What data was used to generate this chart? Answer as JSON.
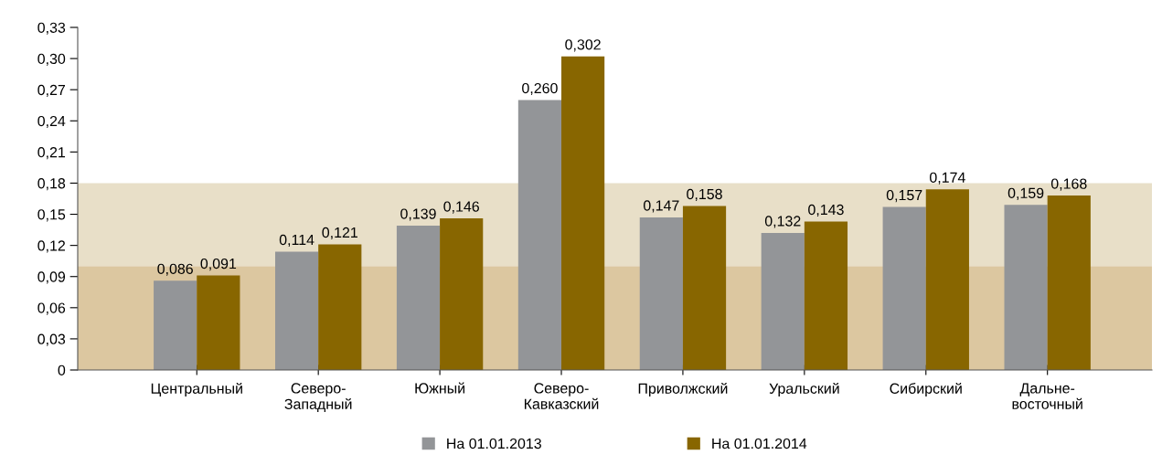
{
  "chart_data": {
    "type": "bar",
    "categories": [
      "Центральный",
      "Северо-\nЗападный",
      "Южный",
      "Северо-\nКавказский",
      "Приволжский",
      "Уральский",
      "Сибирский",
      "Дальне-\nвосточный"
    ],
    "series": [
      {
        "name": "На 01.01.2013",
        "color": "#939598",
        "values": [
          0.086,
          0.114,
          0.139,
          0.26,
          0.147,
          0.132,
          0.157,
          0.159
        ],
        "value_labels": [
          "0,086",
          "0,114",
          "0,139",
          "0,260",
          "0,147",
          "0,132",
          "0,157",
          "0,159"
        ]
      },
      {
        "name": "На 01.01.2014",
        "color": "#886600",
        "values": [
          0.091,
          0.121,
          0.146,
          0.302,
          0.158,
          0.143,
          0.174,
          0.168
        ],
        "value_labels": [
          "0,091",
          "0,121",
          "0,146",
          "0,302",
          "0,158",
          "0,143",
          "0,174",
          "0,168"
        ]
      }
    ],
    "ylim": [
      0,
      0.33
    ],
    "yticks": [
      0,
      {
        "value": 0.03,
        "label": "0,03"
      },
      {
        "value": 0.06,
        "label": "0,06"
      },
      {
        "value": 0.09,
        "label": "0,09"
      },
      {
        "value": 0.12,
        "label": "0,12"
      },
      {
        "value": 0.15,
        "label": "0,15"
      },
      {
        "value": 0.18,
        "label": "0,18"
      },
      {
        "value": 0.21,
        "label": "0,21"
      },
      {
        "value": 0.24,
        "label": "0,24"
      },
      {
        "value": 0.27,
        "label": "0,27"
      },
      {
        "value": 0.3,
        "label": "0,30"
      },
      {
        "value": 0.33,
        "label": "0,33"
      }
    ],
    "bands": [
      {
        "axis": "y",
        "from": 0,
        "to": 0.1,
        "color": "#dcc7a0"
      },
      {
        "axis": "y",
        "from": 0.1,
        "to": 0.18,
        "color": "#e8dfc8"
      }
    ],
    "grid": false,
    "legend": "bottom"
  }
}
